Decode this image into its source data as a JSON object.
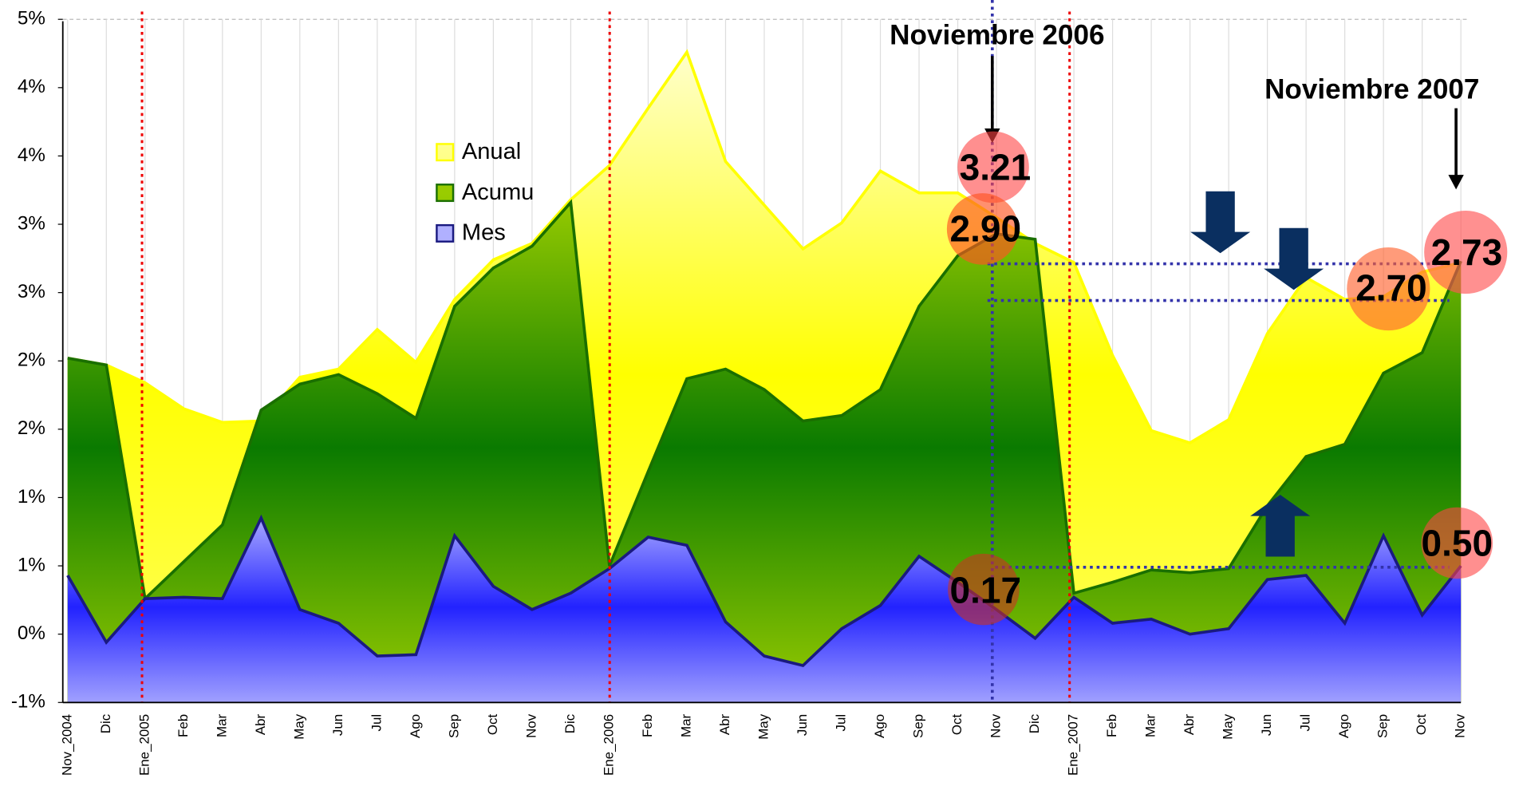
{
  "chart_data": {
    "type": "area",
    "categories": [
      "Nov_2004",
      "Dic",
      "Ene_2005",
      "Feb",
      "Mar",
      "Abr",
      "May",
      "Jun",
      "Jul",
      "Ago",
      "Sep",
      "Oct",
      "Nov",
      "Dic",
      "Ene_2006",
      "Feb",
      "Mar",
      "Abr",
      "May",
      "Jun",
      "Jul",
      "Ago",
      "Sep",
      "Oct",
      "Nov",
      "Dic",
      "Ene_2007",
      "Feb",
      "Mar",
      "Abr",
      "May",
      "Jun",
      "Jul",
      "Ago",
      "Sep",
      "Oct",
      "Nov"
    ],
    "series": [
      {
        "name": "Anual",
        "color": "#ffff00",
        "values": [
          2.02,
          1.97,
          1.84,
          1.65,
          1.55,
          1.56,
          1.88,
          1.94,
          2.23,
          1.99,
          2.45,
          2.74,
          2.86,
          3.18,
          3.43,
          3.85,
          4.26,
          3.46,
          3.14,
          2.82,
          3.01,
          3.39,
          3.23,
          3.23,
          3.05,
          2.86,
          2.72,
          2.04,
          1.49,
          1.4,
          1.57,
          2.2,
          2.61,
          2.45,
          2.47,
          2.65,
          2.72
        ]
      },
      {
        "name": "Acumu",
        "color": "#1a6f00",
        "values": [
          2.02,
          1.97,
          0.26,
          0.53,
          0.8,
          1.64,
          1.83,
          1.9,
          1.76,
          1.58,
          2.4,
          2.68,
          2.84,
          3.16,
          0.5,
          1.19,
          1.87,
          1.94,
          1.79,
          1.56,
          1.6,
          1.79,
          2.4,
          2.77,
          2.93,
          2.89,
          0.3,
          0.38,
          0.47,
          0.45,
          0.48,
          0.94,
          1.3,
          1.39,
          1.91,
          2.06,
          2.73
        ]
      },
      {
        "name": "Mes",
        "color": "#1a1a80",
        "values": [
          0.43,
          -0.06,
          0.26,
          0.27,
          0.26,
          0.85,
          0.18,
          0.08,
          -0.16,
          -0.15,
          0.72,
          0.35,
          0.18,
          0.3,
          0.48,
          0.71,
          0.65,
          0.09,
          -0.16,
          -0.23,
          0.04,
          0.21,
          0.57,
          0.38,
          0.18,
          -0.03,
          0.27,
          0.08,
          0.11,
          0.0,
          0.04,
          0.4,
          0.43,
          0.08,
          0.72,
          0.14,
          0.5
        ]
      }
    ],
    "ylim": [
      -0.5,
      4.5
    ],
    "yticks": [
      {
        "value": -0.5,
        "label": "-1%"
      },
      {
        "value": 0,
        "label": "0%"
      },
      {
        "value": 0.5,
        "label": "1%"
      },
      {
        "value": 1,
        "label": "1%"
      },
      {
        "value": 1.5,
        "label": "2%"
      },
      {
        "value": 2,
        "label": "2%"
      },
      {
        "value": 2.5,
        "label": "3%"
      },
      {
        "value": 3,
        "label": "3%"
      },
      {
        "value": 3.5,
        "label": "4%"
      },
      {
        "value": 4,
        "label": "4%"
      },
      {
        "value": 4.5,
        "label": "5%"
      }
    ],
    "annotations": [
      "Noviembre 2006",
      "Noviembre 2007",
      "3.21",
      "2.90",
      "0.17",
      "2.73",
      "2.70",
      "0.50"
    ]
  }
}
